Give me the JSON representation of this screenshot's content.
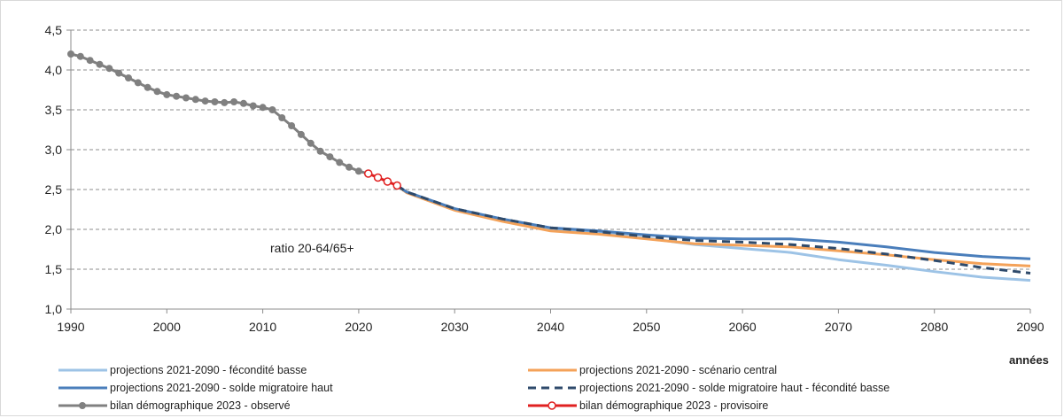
{
  "chart_data": {
    "type": "line",
    "title": "",
    "xlabel": "années",
    "ylabel": "",
    "xlim": [
      1990,
      2090
    ],
    "ylim": [
      1.0,
      4.5
    ],
    "xticks": [
      1990,
      2000,
      2010,
      2020,
      2030,
      2040,
      2050,
      2060,
      2070,
      2080,
      2090
    ],
    "yticks": [
      "1,0",
      "1,5",
      "2,0",
      "2,5",
      "3,0",
      "3,5",
      "4,0",
      "4,5"
    ],
    "ytick_values": [
      1.0,
      1.5,
      2.0,
      2.5,
      3.0,
      3.5,
      4.0,
      4.5
    ],
    "grid": "horizontal dashed",
    "legend_position": "bottom",
    "annotation": "ratio 20-64/65+",
    "series": [
      {
        "name": "projections 2021-2090 - fécondité basse",
        "color": "#9dc3e6",
        "style": "solid",
        "points": [
          [
            2024,
            2.55
          ],
          [
            2025,
            2.46
          ],
          [
            2030,
            2.25
          ],
          [
            2035,
            2.12
          ],
          [
            2040,
            2.01
          ],
          [
            2045,
            1.96
          ],
          [
            2050,
            1.89
          ],
          [
            2055,
            1.81
          ],
          [
            2060,
            1.76
          ],
          [
            2065,
            1.71
          ],
          [
            2070,
            1.62
          ],
          [
            2075,
            1.55
          ],
          [
            2080,
            1.47
          ],
          [
            2085,
            1.4
          ],
          [
            2090,
            1.36
          ]
        ]
      },
      {
        "name": "projections 2021-2090 - scénario central",
        "color": "#f4a259",
        "style": "solid",
        "points": [
          [
            2024,
            2.55
          ],
          [
            2025,
            2.46
          ],
          [
            2030,
            2.24
          ],
          [
            2035,
            2.1
          ],
          [
            2040,
            1.98
          ],
          [
            2045,
            1.94
          ],
          [
            2050,
            1.88
          ],
          [
            2055,
            1.82
          ],
          [
            2060,
            1.8
          ],
          [
            2065,
            1.78
          ],
          [
            2070,
            1.73
          ],
          [
            2075,
            1.68
          ],
          [
            2080,
            1.62
          ],
          [
            2085,
            1.57
          ],
          [
            2090,
            1.54
          ]
        ]
      },
      {
        "name": "projections 2021-2090 - solde migratoire haut",
        "color": "#4a7ebb",
        "style": "solid",
        "points": [
          [
            2024,
            2.55
          ],
          [
            2025,
            2.47
          ],
          [
            2030,
            2.26
          ],
          [
            2035,
            2.13
          ],
          [
            2040,
            2.02
          ],
          [
            2045,
            1.98
          ],
          [
            2050,
            1.93
          ],
          [
            2055,
            1.89
          ],
          [
            2060,
            1.88
          ],
          [
            2065,
            1.88
          ],
          [
            2070,
            1.84
          ],
          [
            2075,
            1.78
          ],
          [
            2080,
            1.71
          ],
          [
            2085,
            1.66
          ],
          [
            2090,
            1.63
          ]
        ]
      },
      {
        "name": "projections 2021-2090 - solde migratoire haut - fécondité basse",
        "color": "#2e4a6b",
        "style": "dashed",
        "points": [
          [
            2024,
            2.55
          ],
          [
            2025,
            2.47
          ],
          [
            2030,
            2.26
          ],
          [
            2035,
            2.13
          ],
          [
            2040,
            2.02
          ],
          [
            2045,
            1.97
          ],
          [
            2050,
            1.91
          ],
          [
            2055,
            1.86
          ],
          [
            2060,
            1.84
          ],
          [
            2065,
            1.81
          ],
          [
            2070,
            1.76
          ],
          [
            2075,
            1.69
          ],
          [
            2080,
            1.61
          ],
          [
            2085,
            1.52
          ],
          [
            2090,
            1.45
          ]
        ]
      },
      {
        "name": "bilan démographique 2023 - observé",
        "color": "#808080",
        "style": "solid-markers",
        "points": [
          [
            1990,
            4.2
          ],
          [
            1991,
            4.17
          ],
          [
            1992,
            4.12
          ],
          [
            1993,
            4.07
          ],
          [
            1994,
            4.02
          ],
          [
            1995,
            3.96
          ],
          [
            1996,
            3.9
          ],
          [
            1997,
            3.84
          ],
          [
            1998,
            3.78
          ],
          [
            1999,
            3.73
          ],
          [
            2000,
            3.69
          ],
          [
            2001,
            3.67
          ],
          [
            2002,
            3.65
          ],
          [
            2003,
            3.63
          ],
          [
            2004,
            3.61
          ],
          [
            2005,
            3.6
          ],
          [
            2006,
            3.59
          ],
          [
            2007,
            3.6
          ],
          [
            2008,
            3.58
          ],
          [
            2009,
            3.55
          ],
          [
            2010,
            3.53
          ],
          [
            2011,
            3.5
          ],
          [
            2012,
            3.4
          ],
          [
            2013,
            3.3
          ],
          [
            2014,
            3.19
          ],
          [
            2015,
            3.08
          ],
          [
            2016,
            2.98
          ],
          [
            2017,
            2.91
          ],
          [
            2018,
            2.84
          ],
          [
            2019,
            2.78
          ],
          [
            2020,
            2.73
          ],
          [
            2021,
            2.7
          ]
        ]
      },
      {
        "name": "bilan démographique 2023 - provisoire",
        "color": "#e02020",
        "style": "solid-open-markers",
        "points": [
          [
            2021,
            2.7
          ],
          [
            2022,
            2.65
          ],
          [
            2023,
            2.6
          ],
          [
            2024,
            2.55
          ]
        ]
      }
    ]
  }
}
